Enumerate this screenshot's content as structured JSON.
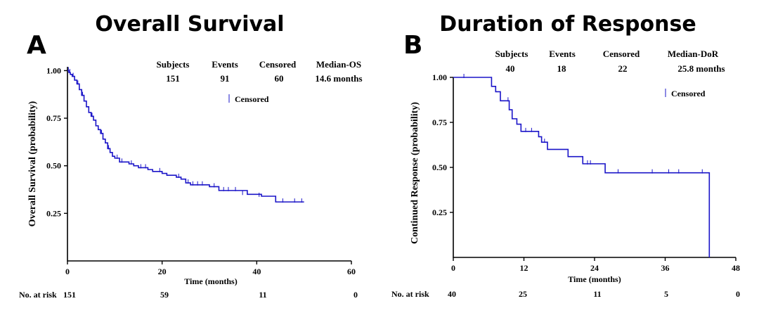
{
  "chart_data": [
    {
      "type": "line",
      "panel": "A",
      "title": "Overall Survival",
      "xlabel": "Time (months)",
      "ylabel": "Overall Survival (probability)",
      "xlim": [
        0,
        60
      ],
      "ylim": [
        0,
        1.02
      ],
      "xticks": [
        "0",
        "20",
        "40",
        "60"
      ],
      "yticks": [
        "0.25",
        "0.50",
        "0.75",
        "1.00"
      ],
      "legend": "Censored",
      "summary": {
        "headers": [
          "Subjects",
          "Events",
          "Censored",
          "Median-OS"
        ],
        "values": [
          "151",
          "91",
          "60",
          "14.6 months"
        ]
      },
      "risk_label": "No. at risk",
      "risk_values": [
        "151",
        "59",
        "11",
        "0"
      ],
      "series": [
        {
          "name": "Overall Survival",
          "x": [
            0,
            0.3,
            0.6,
            1.0,
            1.5,
            2.0,
            2.5,
            3,
            3.5,
            4,
            4.5,
            5,
            5.5,
            6,
            6.5,
            7,
            7.5,
            8,
            8.5,
            9,
            9.5,
            10,
            11,
            12,
            13,
            14,
            15,
            16,
            17,
            18,
            19,
            20,
            21,
            22,
            23,
            24,
            25,
            26,
            28,
            30,
            32,
            35,
            38,
            41,
            44,
            47,
            50
          ],
          "y": [
            1.0,
            0.99,
            0.98,
            0.97,
            0.95,
            0.93,
            0.9,
            0.87,
            0.84,
            0.81,
            0.78,
            0.76,
            0.74,
            0.71,
            0.69,
            0.67,
            0.64,
            0.62,
            0.59,
            0.57,
            0.55,
            0.54,
            0.52,
            0.52,
            0.51,
            0.5,
            0.49,
            0.49,
            0.48,
            0.47,
            0.47,
            0.46,
            0.45,
            0.45,
            0.44,
            0.43,
            0.41,
            0.4,
            0.4,
            0.39,
            0.37,
            0.37,
            0.35,
            0.34,
            0.31,
            0.31,
            0.31
          ]
        }
      ],
      "censored": [
        {
          "x": 0.2,
          "y": 1.0
        },
        {
          "x": 0.5,
          "y": 0.99
        },
        {
          "x": 1.2,
          "y": 0.97
        },
        {
          "x": 2.2,
          "y": 0.93
        },
        {
          "x": 3.2,
          "y": 0.87
        },
        {
          "x": 5.2,
          "y": 0.76
        },
        {
          "x": 7.2,
          "y": 0.67
        },
        {
          "x": 8.7,
          "y": 0.59
        },
        {
          "x": 10.5,
          "y": 0.54
        },
        {
          "x": 11.5,
          "y": 0.52
        },
        {
          "x": 13.5,
          "y": 0.51
        },
        {
          "x": 15.5,
          "y": 0.49
        },
        {
          "x": 16.5,
          "y": 0.49
        },
        {
          "x": 19.5,
          "y": 0.47
        },
        {
          "x": 23.5,
          "y": 0.44
        },
        {
          "x": 25.5,
          "y": 0.41
        },
        {
          "x": 26.5,
          "y": 0.4
        },
        {
          "x": 27.5,
          "y": 0.4
        },
        {
          "x": 28.5,
          "y": 0.4
        },
        {
          "x": 31.0,
          "y": 0.39
        },
        {
          "x": 33.0,
          "y": 0.37
        },
        {
          "x": 34.0,
          "y": 0.37
        },
        {
          "x": 35.5,
          "y": 0.37
        },
        {
          "x": 37.0,
          "y": 0.35
        },
        {
          "x": 40.5,
          "y": 0.34
        },
        {
          "x": 45.5,
          "y": 0.31
        },
        {
          "x": 48.0,
          "y": 0.31
        },
        {
          "x": 49.5,
          "y": 0.31
        }
      ]
    },
    {
      "type": "line",
      "panel": "B",
      "title": "Duration of Response",
      "xlabel": "Time (months)",
      "ylabel": "Continued Response (probability)",
      "xlim": [
        0,
        48
      ],
      "ylim": [
        0,
        1.0
      ],
      "xticks": [
        "0",
        "12",
        "24",
        "36",
        "48"
      ],
      "yticks": [
        "0.25",
        "0.50",
        "0.75",
        "1.00"
      ],
      "legend": "Censored",
      "summary": {
        "headers": [
          "Subjects",
          "Events",
          "Censored",
          "Median-DoR"
        ],
        "values": [
          "40",
          "18",
          "22",
          "25.8 months"
        ]
      },
      "risk_label": "No. at risk",
      "risk_values": [
        "40",
        "25",
        "11",
        "5",
        "0"
      ],
      "series": [
        {
          "name": "Duration of Response",
          "x": [
            0,
            5.5,
            6.5,
            7.2,
            8.0,
            9.0,
            9.5,
            10.0,
            10.8,
            11.5,
            13.5,
            14.5,
            15.0,
            16.0,
            19.5,
            22.0,
            25.8,
            43.5,
            43.5
          ],
          "y": [
            1.0,
            1.0,
            0.95,
            0.92,
            0.87,
            0.87,
            0.82,
            0.77,
            0.74,
            0.7,
            0.7,
            0.67,
            0.64,
            0.6,
            0.56,
            0.52,
            0.47,
            0.47,
            0.0
          ]
        }
      ],
      "censored": [
        {
          "x": 1.8,
          "y": 1.0
        },
        {
          "x": 9.3,
          "y": 0.87
        },
        {
          "x": 12.3,
          "y": 0.7
        },
        {
          "x": 13.3,
          "y": 0.7
        },
        {
          "x": 15.5,
          "y": 0.64
        },
        {
          "x": 22.8,
          "y": 0.52
        },
        {
          "x": 23.3,
          "y": 0.52
        },
        {
          "x": 28.0,
          "y": 0.47
        },
        {
          "x": 33.8,
          "y": 0.47
        },
        {
          "x": 36.6,
          "y": 0.47
        },
        {
          "x": 38.3,
          "y": 0.47
        },
        {
          "x": 42.3,
          "y": 0.47
        }
      ]
    }
  ]
}
